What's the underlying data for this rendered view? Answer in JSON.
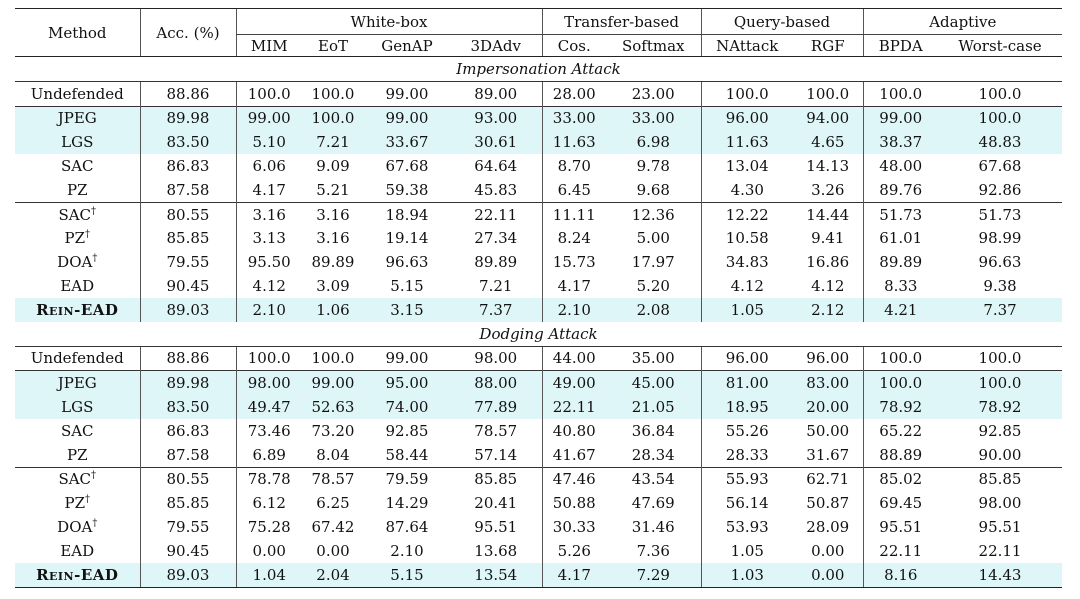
{
  "header": {
    "method": "Method",
    "acc": "Acc. (%)",
    "groups": [
      "White-box",
      "Transfer-based",
      "Query-based",
      "Adaptive"
    ],
    "columns": [
      "MIM",
      "EoT",
      "GenAP",
      "3DAdv",
      "Cos.",
      "Softmax",
      "NAttack",
      "RGF",
      "BPDA",
      "Worst-case"
    ]
  },
  "sections": [
    {
      "title": "Impersonation Attack",
      "rows": [
        {
          "method": "Undefended",
          "acc": "88.86",
          "vals": [
            "100.0",
            "100.0",
            "99.00",
            "89.00",
            "28.00",
            "23.00",
            "100.0",
            "100.0",
            "100.0",
            "100.0"
          ]
        },
        {
          "method": "JPEG",
          "acc": "89.98",
          "vals": [
            "99.00",
            "100.0",
            "99.00",
            "93.00",
            "33.00",
            "33.00",
            "96.00",
            "94.00",
            "99.00",
            "100.0"
          ]
        },
        {
          "method": "LGS",
          "acc": "83.50",
          "vals": [
            "5.10",
            "7.21",
            "33.67",
            "30.61",
            "11.63",
            "6.98",
            "11.63",
            "4.65",
            "38.37",
            "48.83"
          ]
        },
        {
          "method": "SAC",
          "acc": "86.83",
          "vals": [
            "6.06",
            "9.09",
            "67.68",
            "64.64",
            "8.70",
            "9.78",
            "13.04",
            "14.13",
            "48.00",
            "67.68"
          ]
        },
        {
          "method": "PZ",
          "acc": "87.58",
          "vals": [
            "4.17",
            "5.21",
            "59.38",
            "45.83",
            "6.45",
            "9.68",
            "4.30",
            "3.26",
            "89.76",
            "92.86"
          ]
        },
        {
          "method": "SAC",
          "dagger": "†",
          "acc": "80.55",
          "vals": [
            "3.16",
            "3.16",
            "18.94",
            "22.11",
            "11.11",
            "12.36",
            "12.22",
            "14.44",
            "51.73",
            "51.73"
          ]
        },
        {
          "method": "PZ",
          "dagger": "†",
          "acc": "85.85",
          "vals": [
            "3.13",
            "3.16",
            "19.14",
            "27.34",
            "8.24",
            "5.00",
            "10.58",
            "9.41",
            "61.01",
            "98.99"
          ]
        },
        {
          "method": "DOA",
          "dagger": "†",
          "acc": "79.55",
          "vals": [
            "95.50",
            "89.89",
            "96.63",
            "89.89",
            "15.73",
            "17.97",
            "34.83",
            "16.86",
            "89.89",
            "96.63"
          ]
        },
        {
          "method": "EAD",
          "acc": "90.45",
          "vals": [
            "4.12",
            "3.09",
            "5.15",
            "7.21",
            "4.17",
            "5.20",
            "4.12",
            "4.12",
            "8.33",
            "9.38"
          ]
        },
        {
          "method": "Rein-EAD",
          "acc": "89.03",
          "vals": [
            "2.10",
            "1.06",
            "3.15",
            "7.37",
            "2.10",
            "2.08",
            "1.05",
            "2.12",
            "4.21",
            "7.37"
          ]
        }
      ]
    },
    {
      "title": "Dodging Attack",
      "rows": [
        {
          "method": "Undefended",
          "acc": "88.86",
          "vals": [
            "100.0",
            "100.0",
            "99.00",
            "98.00",
            "44.00",
            "35.00",
            "96.00",
            "96.00",
            "100.0",
            "100.0"
          ]
        },
        {
          "method": "JPEG",
          "acc": "89.98",
          "vals": [
            "98.00",
            "99.00",
            "95.00",
            "88.00",
            "49.00",
            "45.00",
            "81.00",
            "83.00",
            "100.0",
            "100.0"
          ]
        },
        {
          "method": "LGS",
          "acc": "83.50",
          "vals": [
            "49.47",
            "52.63",
            "74.00",
            "77.89",
            "22.11",
            "21.05",
            "18.95",
            "20.00",
            "78.92",
            "78.92"
          ]
        },
        {
          "method": "SAC",
          "acc": "86.83",
          "vals": [
            "73.46",
            "73.20",
            "92.85",
            "78.57",
            "40.80",
            "36.84",
            "55.26",
            "50.00",
            "65.22",
            "92.85"
          ]
        },
        {
          "method": "PZ",
          "acc": "87.58",
          "vals": [
            "6.89",
            "8.04",
            "58.44",
            "57.14",
            "41.67",
            "28.34",
            "28.33",
            "31.67",
            "88.89",
            "90.00"
          ]
        },
        {
          "method": "SAC",
          "dagger": "†",
          "acc": "80.55",
          "vals": [
            "78.78",
            "78.57",
            "79.59",
            "85.85",
            "47.46",
            "43.54",
            "55.93",
            "62.71",
            "85.02",
            "85.85"
          ]
        },
        {
          "method": "PZ",
          "dagger": "†",
          "acc": "85.85",
          "vals": [
            "6.12",
            "6.25",
            "14.29",
            "20.41",
            "50.88",
            "47.69",
            "56.14",
            "50.87",
            "69.45",
            "98.00"
          ]
        },
        {
          "method": "DOA",
          "dagger": "†",
          "acc": "79.55",
          "vals": [
            "75.28",
            "67.42",
            "87.64",
            "95.51",
            "30.33",
            "31.46",
            "53.93",
            "28.09",
            "95.51",
            "95.51"
          ]
        },
        {
          "method": "EAD",
          "acc": "90.45",
          "vals": [
            "0.00",
            "0.00",
            "2.10",
            "13.68",
            "5.26",
            "7.36",
            "1.05",
            "0.00",
            "22.11",
            "22.11"
          ]
        },
        {
          "method": "Rein-EAD",
          "acc": "89.03",
          "vals": [
            "1.04",
            "2.04",
            "5.15",
            "13.54",
            "4.17",
            "7.29",
            "1.03",
            "0.00",
            "8.16",
            "14.43"
          ]
        }
      ]
    }
  ],
  "bold": [
    [
      [],
      [],
      [],
      [],
      [],
      [],
      [],
      [],
      [
        "acc",
        3
      ],
      [
        0,
        1,
        2,
        4,
        5,
        6,
        7,
        8,
        9
      ]
    ],
    [
      [],
      [],
      [],
      [],
      [],
      [],
      [],
      [],
      [
        "acc",
        0,
        1,
        2,
        7
      ],
      [
        3,
        4,
        5,
        6,
        7,
        8,
        9
      ]
    ]
  ]
}
